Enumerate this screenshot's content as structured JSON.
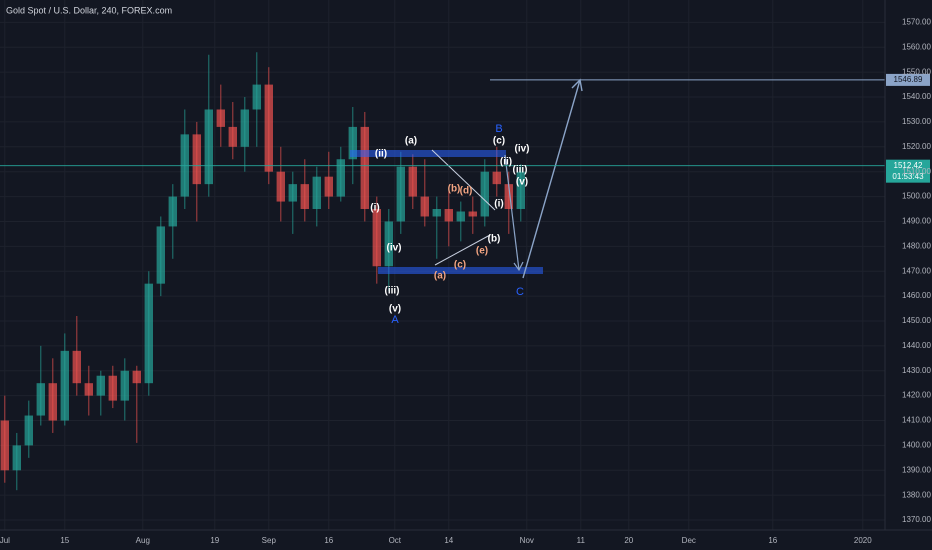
{
  "chart_data": {
    "type": "candlestick",
    "title": "Gold Spot / U.S. Dollar, 240, FOREX.com",
    "x": [
      0,
      2,
      4,
      6,
      8,
      10,
      12,
      14,
      16,
      18,
      20,
      22,
      24,
      26,
      28,
      30,
      32,
      34,
      36,
      38,
      40,
      42,
      44,
      46,
      48,
      50,
      52,
      54,
      56,
      58,
      60,
      62,
      64,
      66,
      68,
      70,
      72,
      74,
      76,
      78,
      80,
      82,
      84,
      86
    ],
    "open": [
      1410,
      1390,
      1400,
      1412,
      1425,
      1410,
      1438,
      1425,
      1420,
      1428,
      1418,
      1430,
      1425,
      1465,
      1488,
      1500,
      1525,
      1505,
      1535,
      1528,
      1520,
      1535,
      1545,
      1510,
      1498,
      1505,
      1495,
      1508,
      1500,
      1515,
      1528,
      1495,
      1472,
      1490,
      1512,
      1500,
      1492,
      1495,
      1490,
      1494,
      1492,
      1510,
      1505,
      1495
    ],
    "high": [
      1420,
      1405,
      1418,
      1440,
      1435,
      1445,
      1452,
      1432,
      1430,
      1432,
      1435,
      1432,
      1470,
      1492,
      1505,
      1535,
      1530,
      1557,
      1545,
      1538,
      1540,
      1558,
      1552,
      1520,
      1510,
      1515,
      1512,
      1518,
      1520,
      1536,
      1534,
      1500,
      1495,
      1518,
      1517,
      1515,
      1500,
      1502,
      1498,
      1500,
      1515,
      1520,
      1510,
      1513
    ],
    "low": [
      1385,
      1382,
      1395,
      1408,
      1405,
      1408,
      1420,
      1412,
      1412,
      1415,
      1410,
      1401,
      1420,
      1460,
      1475,
      1495,
      1490,
      1500,
      1520,
      1515,
      1510,
      1520,
      1505,
      1490,
      1485,
      1490,
      1488,
      1495,
      1498,
      1505,
      1490,
      1465,
      1462,
      1485,
      1495,
      1488,
      1475,
      1480,
      1482,
      1485,
      1488,
      1500,
      1485,
      1490
    ],
    "close": [
      1390,
      1400,
      1412,
      1425,
      1410,
      1438,
      1425,
      1420,
      1428,
      1418,
      1430,
      1425,
      1465,
      1488,
      1500,
      1525,
      1505,
      1535,
      1528,
      1520,
      1535,
      1545,
      1510,
      1498,
      1505,
      1495,
      1508,
      1500,
      1515,
      1528,
      1495,
      1472,
      1490,
      1512,
      1500,
      1492,
      1495,
      1490,
      1494,
      1492,
      1510,
      1505,
      1495,
      1510
    ],
    "up_color": "#26a69a",
    "down_color": "#ef5350",
    "xlim": [
      -0.8,
      146.7
    ],
    "xticks": [
      {
        "value": 0,
        "label": "Jul"
      },
      {
        "value": 10,
        "label": "15"
      },
      {
        "value": 23,
        "label": "Aug"
      },
      {
        "value": 35,
        "label": "19"
      },
      {
        "value": 44,
        "label": "Sep"
      },
      {
        "value": 54,
        "label": "16"
      },
      {
        "value": 65,
        "label": "Oct"
      },
      {
        "value": 74,
        "label": "14"
      },
      {
        "value": 87,
        "label": "Nov"
      },
      {
        "value": 96,
        "label": "11"
      },
      {
        "value": 104,
        "label": "20"
      },
      {
        "value": 114,
        "label": "Dec"
      },
      {
        "value": 128,
        "label": "16"
      },
      {
        "value": 143,
        "label": "2020"
      }
    ],
    "ylim": [
      1366,
      1579
    ],
    "yticks": [
      {
        "value": 1370,
        "label": "1370.00"
      },
      {
        "value": 1380,
        "label": "1380.00"
      },
      {
        "value": 1390,
        "label": "1390.00"
      },
      {
        "value": 1400,
        "label": "1400.00"
      },
      {
        "value": 1410,
        "label": "1410.00"
      },
      {
        "value": 1420,
        "label": "1420.00"
      },
      {
        "value": 1430,
        "label": "1430.00"
      },
      {
        "value": 1440,
        "label": "1440.00"
      },
      {
        "value": 1450,
        "label": "1450.00"
      },
      {
        "value": 1460,
        "label": "1460.00"
      },
      {
        "value": 1470,
        "label": "1470.00"
      },
      {
        "value": 1480,
        "label": "1480.00"
      },
      {
        "value": 1490,
        "label": "1490.00"
      },
      {
        "value": 1500,
        "label": "1500.00"
      },
      {
        "value": 1510,
        "label": "1510.00"
      },
      {
        "value": 1520,
        "label": "1520.00"
      },
      {
        "value": 1530,
        "label": "1530.00"
      },
      {
        "value": 1540,
        "label": "1540.00"
      },
      {
        "value": 1550,
        "label": "1550.00"
      },
      {
        "value": 1560,
        "label": "1560.00"
      },
      {
        "value": 1570,
        "label": "1570.00"
      }
    ],
    "grid": true,
    "target_price": 1546.89,
    "last_price": 1512.42,
    "countdown": "01:53:43",
    "annotations": [
      "(ii)",
      "(a)",
      "B",
      "(c)",
      "(iv)",
      "(ii)",
      "(iii)",
      "(v)",
      "(i)",
      "(b)",
      "(d)",
      "(i)",
      "(iv)",
      "(b)",
      "(e)",
      "(c)",
      "(a)",
      "(iii)",
      "(v)",
      "A",
      "C"
    ]
  }
}
